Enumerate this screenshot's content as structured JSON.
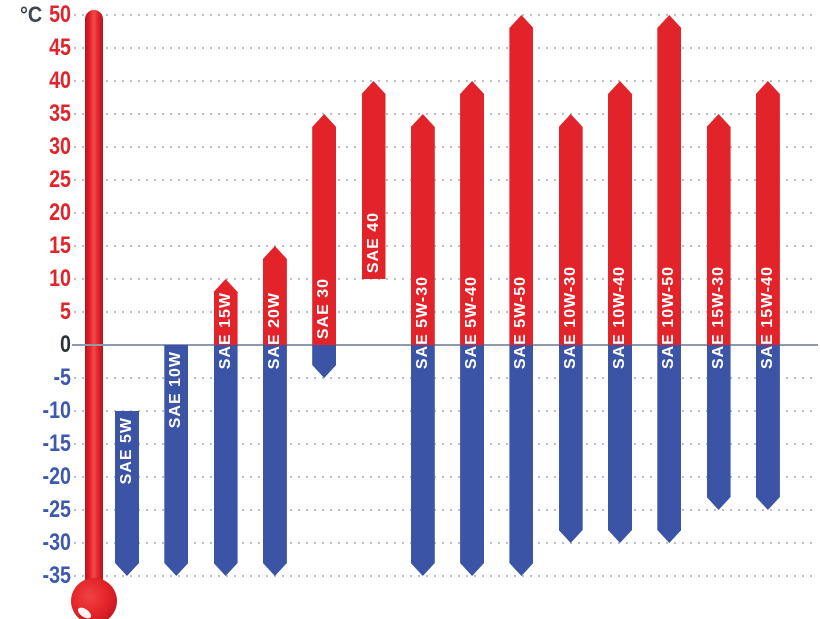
{
  "page": {
    "background": "#ffffff"
  },
  "axis": {
    "unit_label": "°C",
    "max": 50,
    "min": -35,
    "step": 5,
    "tick_labels": [
      "50",
      "45",
      "40",
      "35",
      "30",
      "25",
      "20",
      "15",
      "10",
      "5",
      "0",
      "-5",
      "-10",
      "-15",
      "-20",
      "-25",
      "-30",
      "-35"
    ],
    "colors": {
      "positive": "#e2232a",
      "zero": "#2e3338",
      "negative": "#3d58ad",
      "unit": "#3f464e"
    }
  },
  "chart_data": {
    "type": "bar",
    "subtype": "floating_range_bars_vertical",
    "title": "",
    "xlabel": "",
    "ylabel": "°C",
    "ylim": [
      -35,
      50
    ],
    "ytick_step": 5,
    "grid": {
      "horizontal": "dotted",
      "zero_line": "solid"
    },
    "legend": "none",
    "bars": [
      {
        "label": "SAE 5W",
        "min": -35,
        "max": -10,
        "point_top": false,
        "point_bottom": true
      },
      {
        "label": "SAE 10W",
        "min": -35,
        "max": 0,
        "point_top": false,
        "point_bottom": true
      },
      {
        "label": "SAE 15W",
        "min": -35,
        "max": 10,
        "point_top": true,
        "point_bottom": true
      },
      {
        "label": "SAE 20W",
        "min": -35,
        "max": 15,
        "point_top": true,
        "point_bottom": true
      },
      {
        "label": "SAE 30",
        "min": -5,
        "max": 35,
        "point_top": true,
        "point_bottom": true
      },
      {
        "label": "SAE 40",
        "min": 10,
        "max": 40,
        "point_top": true,
        "point_bottom": false
      },
      {
        "label": "SAE 5W-30",
        "min": -35,
        "max": 35,
        "point_top": true,
        "point_bottom": true
      },
      {
        "label": "SAE 5W-40",
        "min": -35,
        "max": 40,
        "point_top": true,
        "point_bottom": true
      },
      {
        "label": "SAE 5W-50",
        "min": -35,
        "max": 50,
        "point_top": true,
        "point_bottom": true
      },
      {
        "label": "SAE 10W-30",
        "min": -30,
        "max": 35,
        "point_top": true,
        "point_bottom": true
      },
      {
        "label": "SAE 10W-40",
        "min": -30,
        "max": 40,
        "point_top": true,
        "point_bottom": true
      },
      {
        "label": "SAE 10W-50",
        "min": -30,
        "max": 50,
        "point_top": true,
        "point_bottom": true
      },
      {
        "label": "SAE 15W-30",
        "min": -25,
        "max": 35,
        "point_top": true,
        "point_bottom": true
      },
      {
        "label": "SAE 15W-40",
        "min": -25,
        "max": 40,
        "point_top": true,
        "point_bottom": true
      }
    ],
    "colors": {
      "above_zero": "#e2232a",
      "below_zero": "#3b54a5",
      "bar_label_text": "#ffffff"
    }
  },
  "decor": {
    "thermometer": {
      "tube_color": "#e2232a",
      "bulb_color": "#e2232a",
      "highlight_color": "#ffffff"
    },
    "zero_line_color": "#8c9aae",
    "gridline_color": "#7d8aa0"
  }
}
